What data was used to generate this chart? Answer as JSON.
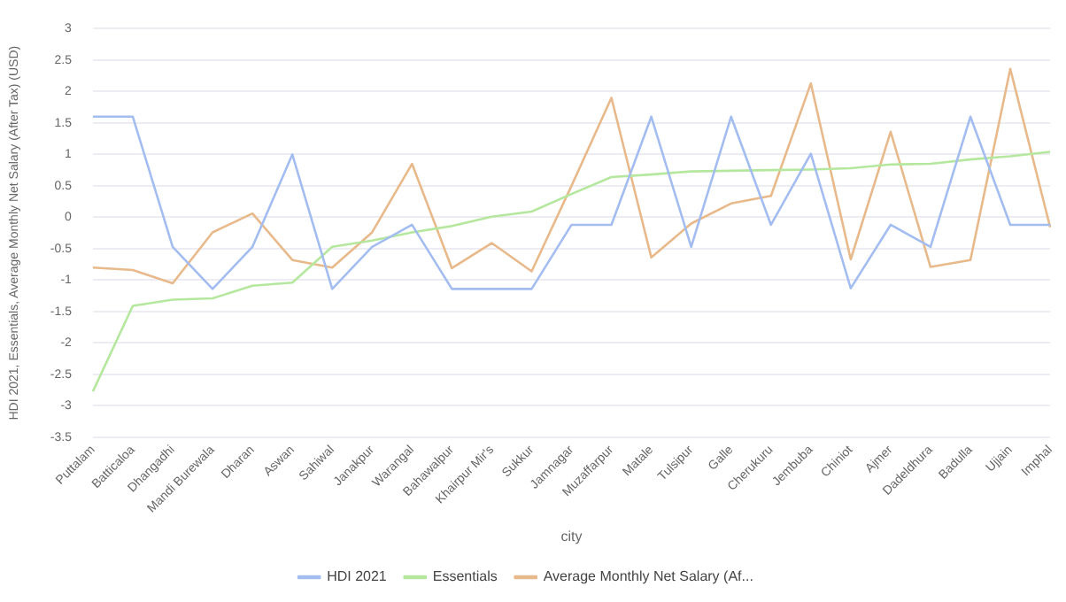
{
  "chart_data": {
    "type": "line",
    "xlabel": "city",
    "ylabel": "HDI 2021, Essentials, Average Monthly Net Salary (After Tax) (USD)",
    "categories": [
      "Puttalam",
      "Batticaloa",
      "Dhangadhi",
      "Mandi Burewala",
      "Dharan",
      "Aswan",
      "Sahiwal",
      "Janakpur",
      "Warangal",
      "Bahawalpur",
      "Khairpur Mir's",
      "Sukkur",
      "Jamnagar",
      "Muzaffarpur",
      "Matale",
      "Tulsipur",
      "Galle",
      "Cherukuru",
      "Jembuba",
      "Chiniot",
      "Ajmer",
      "Dadeldhura",
      "Badulla",
      "Ujjain",
      "Imphal"
    ],
    "series": [
      {
        "name": "HDI 2021",
        "color": "#a4bdf0",
        "values": [
          1.6,
          1.6,
          -0.47,
          -1.14,
          -0.47,
          1.0,
          -1.14,
          -0.47,
          -0.12,
          -1.14,
          -1.14,
          -1.14,
          -0.12,
          -0.12,
          1.6,
          -0.47,
          1.6,
          -0.12,
          1.01,
          -1.13,
          -0.12,
          -0.47,
          1.6,
          -0.12,
          -0.12
        ]
      },
      {
        "name": "Essentials",
        "color": "#b5e89e",
        "values": [
          -2.77,
          -1.41,
          -1.31,
          -1.29,
          -1.09,
          -1.04,
          -0.47,
          -0.37,
          -0.24,
          -0.14,
          0.01,
          0.09,
          0.37,
          0.64,
          0.68,
          0.73,
          0.74,
          0.75,
          0.76,
          0.78,
          0.84,
          0.85,
          0.92,
          0.97,
          1.04
        ]
      },
      {
        "name": "Average Monthly Net Salary (Af...",
        "color": "#e8b98a",
        "values": [
          -0.8,
          -0.84,
          -1.05,
          -0.24,
          0.06,
          -0.68,
          -0.8,
          -0.24,
          0.85,
          -0.81,
          -0.41,
          -0.86,
          0.5,
          1.9,
          -0.64,
          -0.1,
          0.22,
          0.34,
          2.13,
          -0.67,
          1.36,
          -0.79,
          -0.68,
          2.36,
          -0.16
        ]
      }
    ],
    "ylim": [
      -3.5,
      3
    ],
    "yticks": [
      -3.5,
      -3,
      -2.5,
      -2,
      -1.5,
      -1,
      -0.5,
      0,
      0.5,
      1,
      1.5,
      2,
      2.5,
      3
    ],
    "grid": "y",
    "legend": "bottom",
    "marker": "none",
    "line_style": "solid"
  }
}
